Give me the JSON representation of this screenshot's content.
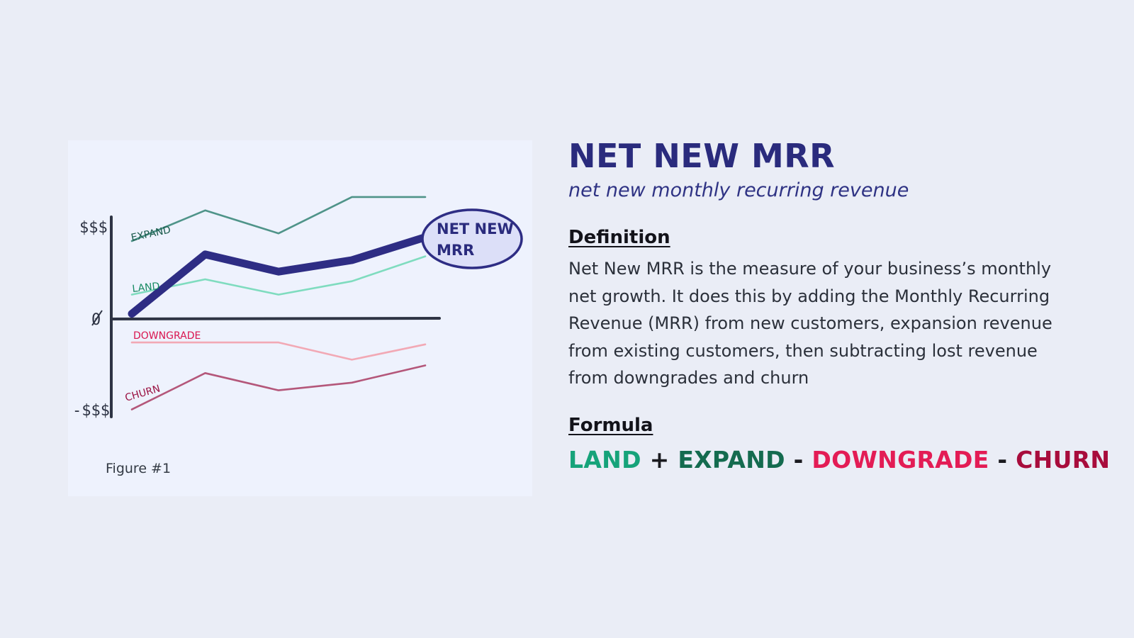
{
  "figure": {
    "caption": "Figure #1",
    "axis_labels": {
      "top": "$$$",
      "zero": "0",
      "bottom": "-$$$"
    },
    "callout": {
      "line1": "NET NEW",
      "line2": "MRR"
    }
  },
  "chart_data": {
    "type": "line",
    "title": "",
    "xlabel": "",
    "ylabel": "",
    "x": [
      0,
      1,
      2,
      3,
      4
    ],
    "y_tick_labels": [
      "$$$",
      "0",
      "-$$$"
    ],
    "series": [
      {
        "name": "EXPAND",
        "color": "#4f9489",
        "values": [
          4.0,
          5.6,
          4.4,
          6.3,
          6.3
        ]
      },
      {
        "name": "LAND",
        "color": "#7fdcbf",
        "values": [
          1.2,
          2.0,
          1.2,
          1.9,
          3.2
        ]
      },
      {
        "name": "NET NEW MRR",
        "color": "#2e2d84",
        "values": [
          0.2,
          3.3,
          2.4,
          3.0,
          4.2
        ]
      },
      {
        "name": "DOWNGRADE",
        "color": "#f2a9b5",
        "values": [
          -1.3,
          -1.3,
          -1.3,
          -2.2,
          -1.4
        ]
      },
      {
        "name": "CHURN",
        "color": "#b4577a",
        "values": [
          -4.8,
          -2.9,
          -3.8,
          -3.4,
          -2.5
        ]
      }
    ]
  },
  "header": {
    "title": "NET NEW MRR",
    "subtitle": "net new monthly recurring revenue"
  },
  "definition": {
    "heading": "Definition",
    "text": "Net New MRR is the measure of your business’s monthly net growth. It does this by adding the Monthly Recurring Revenue (MRR) from new customers, expansion revenue from existing customers, then subtracting lost revenue from downgrades and churn"
  },
  "formula": {
    "heading": "Formula",
    "land": "LAND",
    "plus": "+",
    "expand": "EXPAND",
    "minus1": "-",
    "downgrade": "DOWNGRADE",
    "minus2": "-",
    "churn": "CHURN",
    "colors": {
      "land": "#16a37a",
      "expand": "#146b4f",
      "downgrade": "#e31c55",
      "churn": "#a80c3c"
    }
  }
}
